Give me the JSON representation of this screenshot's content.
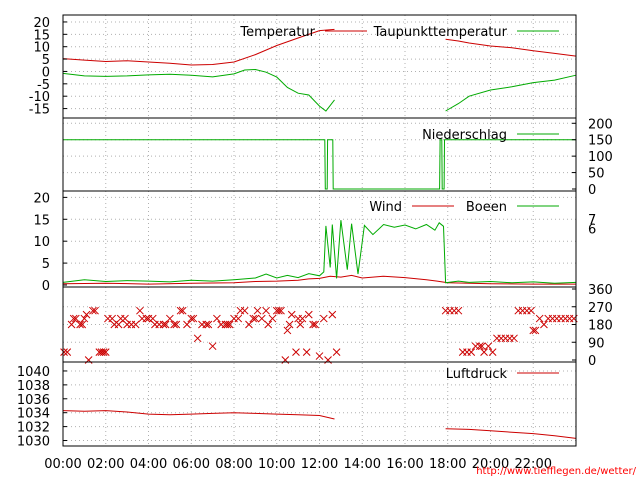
{
  "chart_data": [
    {
      "type": "line",
      "panel": "temperature",
      "ylim": [
        -18,
        22
      ],
      "yticks": [
        "20",
        "15",
        "10",
        "5",
        "0",
        "-5",
        "-10",
        "-15"
      ],
      "grid": true,
      "legend_placement": "top",
      "series": [
        {
          "name": "Temperatur",
          "color": "#cc0000",
          "segments": [
            [
              [
                0,
                5.2
              ],
              [
                1,
                4.6
              ],
              [
                2,
                4.0
              ],
              [
                3,
                4.3
              ],
              [
                4,
                3.8
              ],
              [
                5,
                3.3
              ],
              [
                6,
                2.6
              ],
              [
                7,
                2.8
              ],
              [
                8,
                3.8
              ],
              [
                9,
                6.8
              ],
              [
                10,
                10.5
              ],
              [
                11,
                13.5
              ],
              [
                12,
                16.5
              ],
              [
                12.7,
                17.0
              ]
            ],
            [
              [
                17.9,
                13.0
              ],
              [
                18.5,
                12.3
              ],
              [
                19,
                11.5
              ],
              [
                20,
                10.3
              ],
              [
                21,
                9.6
              ],
              [
                22,
                8.4
              ],
              [
                23,
                7.3
              ],
              [
                24,
                6.2
              ]
            ]
          ]
        },
        {
          "name": "Taupunkttemperatur",
          "color": "#00aa00",
          "segments": [
            [
              [
                0,
                -0.8
              ],
              [
                1,
                -1.8
              ],
              [
                2,
                -2.0
              ],
              [
                3,
                -1.8
              ],
              [
                4,
                -1.4
              ],
              [
                5,
                -1.1
              ],
              [
                6,
                -1.5
              ],
              [
                7,
                -2.2
              ],
              [
                8,
                -1.0
              ],
              [
                8.5,
                0.6
              ],
              [
                9,
                0.8
              ],
              [
                9.5,
                -0.3
              ],
              [
                10,
                -2.3
              ],
              [
                10.5,
                -6.5
              ],
              [
                11,
                -8.8
              ],
              [
                11.5,
                -9.5
              ],
              [
                12,
                -14.0
              ],
              [
                12.3,
                -16.0
              ],
              [
                12.7,
                -11.5
              ]
            ],
            [
              [
                17.9,
                -16.0
              ],
              [
                18.5,
                -13.0
              ],
              [
                19,
                -10.0
              ],
              [
                20,
                -7.5
              ],
              [
                21,
                -6.2
              ],
              [
                22,
                -4.5
              ],
              [
                23,
                -3.5
              ],
              [
                24,
                -1.5
              ]
            ]
          ]
        }
      ]
    },
    {
      "type": "line",
      "panel": "precipitation",
      "ylim": [
        0,
        210
      ],
      "yticks": [
        "200",
        "150",
        "100",
        "50",
        "0"
      ],
      "grid": true,
      "legend_placement": "top-right",
      "series": [
        {
          "name": "Niederschlag",
          "color": "#00aa00",
          "points": [
            [
              0,
              150
            ],
            [
              12.25,
              150
            ],
            [
              12.27,
              0
            ],
            [
              12.36,
              0
            ],
            [
              12.38,
              150
            ],
            [
              12.62,
              150
            ],
            [
              12.64,
              0
            ],
            [
              17.62,
              0
            ],
            [
              17.64,
              150
            ],
            [
              17.72,
              150
            ],
            [
              17.74,
              0
            ],
            [
              17.83,
              0
            ],
            [
              17.85,
              150
            ],
            [
              24,
              150
            ]
          ]
        }
      ]
    },
    {
      "type": "line",
      "panel": "wind",
      "ylim": [
        0,
        21
      ],
      "yticks": [
        "20",
        "15",
        "10",
        "5",
        "0"
      ],
      "right_ticks": [
        "7",
        "6"
      ],
      "grid": true,
      "legend_placement": "top",
      "series": [
        {
          "name": "Wind",
          "color": "#cc0000",
          "points": [
            [
              0,
              0.3
            ],
            [
              2,
              0.4
            ],
            [
              4,
              0.2
            ],
            [
              6,
              0.4
            ],
            [
              8,
              0.5
            ],
            [
              9,
              0.8
            ],
            [
              10,
              0.9
            ],
            [
              11,
              1.1
            ],
            [
              11.5,
              1.4
            ],
            [
              12,
              1.5
            ],
            [
              12.5,
              2.0
            ],
            [
              13,
              1.8
            ],
            [
              13.5,
              2.2
            ],
            [
              14,
              1.6
            ],
            [
              15,
              2.0
            ],
            [
              16,
              1.7
            ],
            [
              17,
              1.2
            ],
            [
              17.5,
              0.9
            ],
            [
              18,
              0.5
            ],
            [
              20,
              0.3
            ],
            [
              22,
              0.2
            ],
            [
              24,
              0.2
            ]
          ]
        },
        {
          "name": "Boeen",
          "color": "#00aa00",
          "points": [
            [
              0,
              0.6
            ],
            [
              1,
              1.2
            ],
            [
              2,
              0.8
            ],
            [
              3,
              1.0
            ],
            [
              4,
              0.9
            ],
            [
              5,
              0.7
            ],
            [
              6,
              1.1
            ],
            [
              7,
              0.9
            ],
            [
              8,
              1.2
            ],
            [
              9,
              1.6
            ],
            [
              9.5,
              2.5
            ],
            [
              10,
              1.6
            ],
            [
              10.5,
              2.2
            ],
            [
              11,
              1.7
            ],
            [
              11.5,
              2.6
            ],
            [
              12,
              2.1
            ],
            [
              12.2,
              3.0
            ],
            [
              12.3,
              13.5
            ],
            [
              12.5,
              4.0
            ],
            [
              12.6,
              13.8
            ],
            [
              12.8,
              1.5
            ],
            [
              13,
              14.8
            ],
            [
              13.3,
              3.5
            ],
            [
              13.5,
              14.0
            ],
            [
              13.8,
              2.5
            ],
            [
              14.1,
              13.6
            ],
            [
              14.5,
              11.5
            ],
            [
              15,
              13.8
            ],
            [
              15.5,
              13.2
            ],
            [
              16,
              13.7
            ],
            [
              16.5,
              12.8
            ],
            [
              17,
              13.8
            ],
            [
              17.4,
              12.5
            ],
            [
              17.6,
              14.2
            ],
            [
              17.8,
              13.4
            ],
            [
              17.9,
              0.5
            ],
            [
              18.5,
              0.9
            ],
            [
              19,
              0.6
            ],
            [
              20,
              0.8
            ],
            [
              21,
              0.5
            ],
            [
              22,
              0.7
            ],
            [
              23,
              0.4
            ],
            [
              24,
              0.6
            ]
          ]
        }
      ]
    },
    {
      "type": "scatter",
      "panel": "wind-direction",
      "ylim": [
        0,
        360
      ],
      "yticks": [
        "360",
        "270",
        "180",
        "90",
        "0"
      ],
      "grid": true,
      "color": "#cc0000",
      "points": [
        [
          0.05,
          40
        ],
        [
          0.2,
          40
        ],
        [
          0.4,
          180
        ],
        [
          0.5,
          210
        ],
        [
          0.6,
          210
        ],
        [
          0.8,
          180
        ],
        [
          0.9,
          180
        ],
        [
          1.0,
          210
        ],
        [
          1.1,
          230
        ],
        [
          1.2,
          0
        ],
        [
          1.4,
          250
        ],
        [
          1.5,
          250
        ],
        [
          1.7,
          40
        ],
        [
          1.8,
          40
        ],
        [
          1.9,
          40
        ],
        [
          2.0,
          40
        ],
        [
          2.1,
          210
        ],
        [
          2.3,
          210
        ],
        [
          2.4,
          180
        ],
        [
          2.6,
          180
        ],
        [
          2.7,
          210
        ],
        [
          2.9,
          210
        ],
        [
          3.0,
          180
        ],
        [
          3.2,
          180
        ],
        [
          3.4,
          180
        ],
        [
          3.6,
          250
        ],
        [
          3.7,
          210
        ],
        [
          3.9,
          210
        ],
        [
          4.0,
          210
        ],
        [
          4.2,
          210
        ],
        [
          4.3,
          180
        ],
        [
          4.5,
          180
        ],
        [
          4.7,
          180
        ],
        [
          4.8,
          180
        ],
        [
          5.0,
          210
        ],
        [
          5.2,
          180
        ],
        [
          5.3,
          180
        ],
        [
          5.5,
          250
        ],
        [
          5.6,
          250
        ],
        [
          5.8,
          180
        ],
        [
          6.0,
          210
        ],
        [
          6.1,
          210
        ],
        [
          6.3,
          110
        ],
        [
          6.5,
          180
        ],
        [
          6.7,
          180
        ],
        [
          6.8,
          180
        ],
        [
          7.0,
          70
        ],
        [
          7.2,
          210
        ],
        [
          7.4,
          180
        ],
        [
          7.6,
          180
        ],
        [
          7.7,
          180
        ],
        [
          7.8,
          180
        ],
        [
          8.0,
          210
        ],
        [
          8.2,
          210
        ],
        [
          8.3,
          250
        ],
        [
          8.5,
          250
        ],
        [
          8.7,
          180
        ],
        [
          8.9,
          210
        ],
        [
          9.0,
          210
        ],
        [
          9.1,
          250
        ],
        [
          9.3,
          210
        ],
        [
          9.5,
          250
        ],
        [
          9.6,
          180
        ],
        [
          9.8,
          210
        ],
        [
          10.0,
          250
        ],
        [
          10.1,
          250
        ],
        [
          10.2,
          250
        ],
        [
          10.4,
          0
        ],
        [
          10.5,
          150
        ],
        [
          10.6,
          180
        ],
        [
          10.7,
          230
        ],
        [
          10.9,
          40
        ],
        [
          11.0,
          210
        ],
        [
          11.1,
          180
        ],
        [
          11.2,
          210
        ],
        [
          11.4,
          40
        ],
        [
          11.5,
          230
        ],
        [
          11.7,
          180
        ],
        [
          11.8,
          180
        ],
        [
          12.0,
          20
        ],
        [
          12.2,
          210
        ],
        [
          12.4,
          0
        ],
        [
          12.6,
          230
        ],
        [
          12.8,
          40
        ],
        [
          17.9,
          250
        ],
        [
          18.1,
          250
        ],
        [
          18.3,
          250
        ],
        [
          18.5,
          250
        ],
        [
          18.7,
          40
        ],
        [
          18.9,
          40
        ],
        [
          19.1,
          40
        ],
        [
          19.3,
          70
        ],
        [
          19.5,
          70
        ],
        [
          19.6,
          70
        ],
        [
          19.7,
          40
        ],
        [
          19.9,
          70
        ],
        [
          20.1,
          40
        ],
        [
          20.3,
          110
        ],
        [
          20.5,
          110
        ],
        [
          20.7,
          110
        ],
        [
          20.9,
          110
        ],
        [
          21.1,
          110
        ],
        [
          21.3,
          250
        ],
        [
          21.5,
          250
        ],
        [
          21.7,
          250
        ],
        [
          21.9,
          250
        ],
        [
          22.0,
          150
        ],
        [
          22.1,
          150
        ],
        [
          22.3,
          210
        ],
        [
          22.5,
          180
        ],
        [
          22.7,
          210
        ],
        [
          22.9,
          210
        ],
        [
          23.1,
          210
        ],
        [
          23.3,
          210
        ],
        [
          23.5,
          210
        ],
        [
          23.7,
          210
        ],
        [
          23.9,
          210
        ]
      ]
    },
    {
      "type": "line",
      "panel": "pressure",
      "ylim": [
        1029.5,
        1041
      ],
      "yticks": [
        "1040",
        "1038",
        "1036",
        "1034",
        "1032",
        "1030"
      ],
      "grid": true,
      "legend_placement": "top-right",
      "series": [
        {
          "name": "Luftdruck",
          "color": "#cc0000",
          "segments": [
            [
              [
                0,
                1034.3
              ],
              [
                1,
                1034.2
              ],
              [
                2,
                1034.3
              ],
              [
                3,
                1034.1
              ],
              [
                4,
                1033.8
              ],
              [
                5,
                1033.7
              ],
              [
                6,
                1033.8
              ],
              [
                7,
                1033.9
              ],
              [
                8,
                1034.0
              ],
              [
                9,
                1033.9
              ],
              [
                10,
                1033.8
              ],
              [
                11,
                1033.7
              ],
              [
                12,
                1033.6
              ],
              [
                12.7,
                1033.1
              ]
            ],
            [
              [
                17.9,
                1031.7
              ],
              [
                19,
                1031.6
              ],
              [
                20,
                1031.4
              ],
              [
                21,
                1031.2
              ],
              [
                22,
                1031.0
              ],
              [
                23,
                1030.7
              ],
              [
                24,
                1030.3
              ]
            ]
          ]
        }
      ]
    }
  ],
  "x_axis": {
    "range": [
      0,
      24
    ],
    "ticks": [
      "00:00",
      "02:00",
      "04:00",
      "06:00",
      "08:00",
      "10:00",
      "12:00",
      "14:00",
      "16:00",
      "18:00",
      "20:00",
      "22:00"
    ]
  },
  "source_url": "http://www.tiefflegen.de/wetter/"
}
